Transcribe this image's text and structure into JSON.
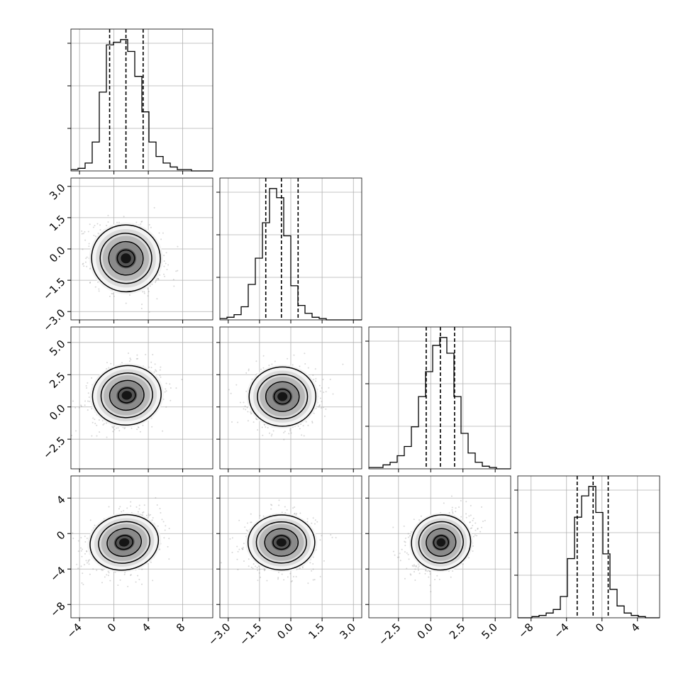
{
  "chart_data": {
    "type": "corner",
    "n_params": 4,
    "ranges": [
      [
        -5,
        11.5
      ],
      [
        -3.4,
        3.4
      ],
      [
        -4.8,
        6.2
      ],
      [
        -9.5,
        6.5
      ]
    ],
    "ticks": [
      [
        "−4",
        "0",
        "4",
        "8"
      ],
      [
        "−3.0",
        "−1.5",
        "0.0",
        "1.5",
        "3.0"
      ],
      [
        "−2.5",
        "0.0",
        "2.5",
        "5.0"
      ],
      [
        "−8",
        "−4",
        "0",
        "4"
      ]
    ],
    "tick_values": [
      [
        -4,
        0,
        4,
        8
      ],
      [
        -3,
        -1.5,
        0,
        1.5,
        3
      ],
      [
        -2.5,
        0,
        2.5,
        5
      ],
      [
        -8,
        -4,
        0,
        4
      ]
    ],
    "grid": true,
    "diagonal_histograms": [
      {
        "param": 0,
        "bin_start": -5,
        "bin_width": 0.825,
        "counts": [
          1,
          2,
          6,
          22,
          60,
          96,
          98,
          100,
          91,
          72,
          45,
          22,
          11,
          6,
          3,
          1,
          1,
          0,
          0,
          0
        ],
        "quantiles": [
          -0.5,
          1.4,
          3.4
        ]
      },
      {
        "param": 1,
        "bin_start": -3.4,
        "bin_width": 0.34,
        "counts": [
          1,
          2,
          4,
          10,
          27,
          47,
          74,
          100,
          93,
          64,
          26,
          11,
          5,
          2,
          1,
          0,
          0,
          0,
          0,
          0
        ],
        "quantiles": [
          -1.2,
          -0.45,
          0.35
        ]
      },
      {
        "param": 2,
        "bin_start": -4.8,
        "bin_width": 0.55,
        "counts": [
          1,
          1,
          3,
          5,
          10,
          17,
          32,
          55,
          74,
          94,
          100,
          88,
          55,
          27,
          12,
          5,
          2,
          1,
          0,
          0
        ],
        "quantiles": [
          -0.35,
          0.75,
          1.85
        ]
      },
      {
        "param": 3,
        "bin_start": -9.5,
        "bin_width": 0.8,
        "counts": [
          0,
          0,
          1,
          2,
          4,
          7,
          18,
          50,
          85,
          103,
          111,
          89,
          54,
          24,
          10,
          4,
          2,
          1,
          0,
          0
        ],
        "quantiles": [
          -2.8,
          -1.0,
          0.7
        ]
      }
    ],
    "pairs": [
      {
        "x": 0,
        "y": 1,
        "mean": [
          1.4,
          -0.45
        ],
        "sd": [
          2.0,
          0.8
        ],
        "rho": -0.2
      },
      {
        "x": 0,
        "y": 2,
        "mean": [
          1.5,
          0.9
        ],
        "sd": [
          2.0,
          1.15
        ],
        "rho": 0.2
      },
      {
        "x": 1,
        "y": 2,
        "mean": [
          -0.4,
          0.8
        ],
        "sd": [
          0.8,
          1.15
        ],
        "rho": 0.0
      },
      {
        "x": 0,
        "y": 3,
        "mean": [
          1.2,
          -1.0
        ],
        "sd": [
          2.0,
          1.55
        ],
        "rho": 0.3
      },
      {
        "x": 1,
        "y": 3,
        "mean": [
          -0.45,
          -1.0
        ],
        "sd": [
          0.8,
          1.55
        ],
        "rho": 0.0
      },
      {
        "x": 2,
        "y": 3,
        "mean": [
          0.8,
          -1.0
        ],
        "sd": [
          1.15,
          1.55
        ],
        "rho": 0.3
      }
    ],
    "contour_levels": [
      0.5,
      1.0,
      1.5,
      2.0
    ]
  }
}
